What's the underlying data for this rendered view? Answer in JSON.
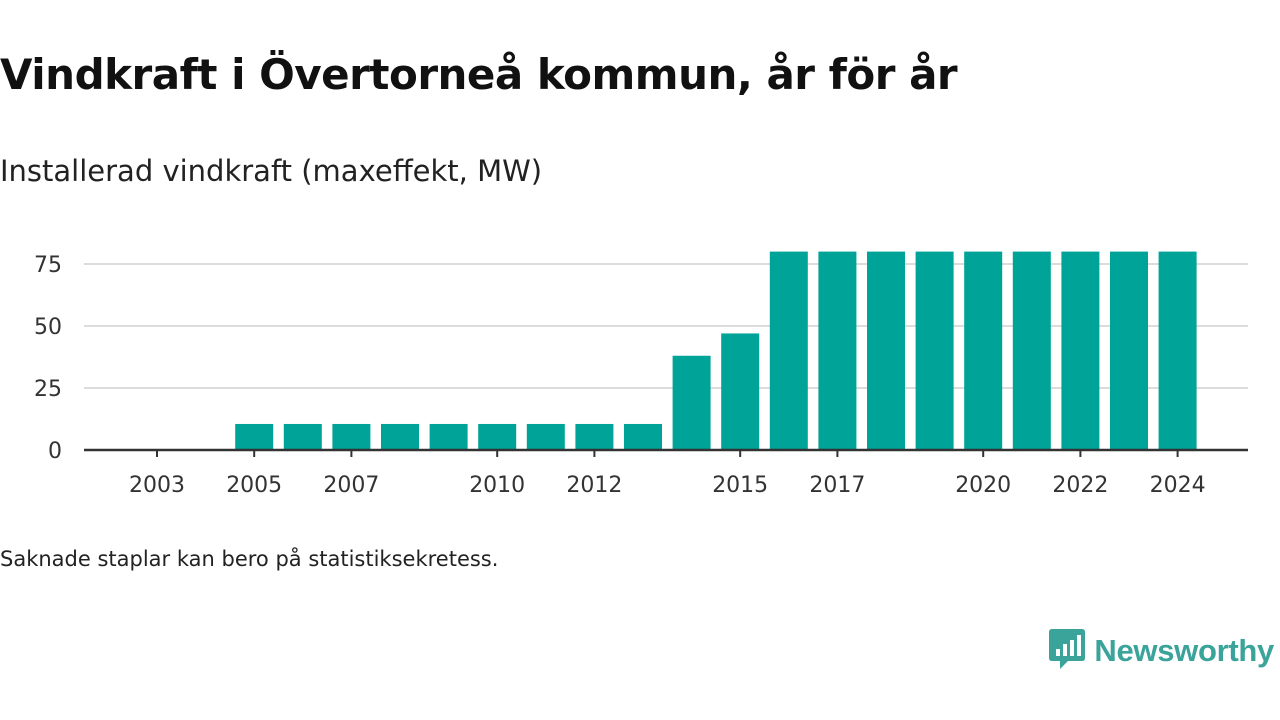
{
  "header": {
    "title": "Vindkraft i Övertorneå kommun, år för år",
    "subtitle": "Installerad vindkraft (maxeffekt, MW)"
  },
  "footer": {
    "note": "Saknade staplar kan bero på statistiksekretess.",
    "brand": "Newsworthy"
  },
  "colors": {
    "bar": "#00a398",
    "grid": "#dcdcdc",
    "axis": "#333333",
    "brand": "#3aa39a"
  },
  "icons": {
    "brand_logo": "newsworthy-logo-icon"
  },
  "chart_data": {
    "type": "bar",
    "categories": [
      "2003",
      "2004",
      "2005",
      "2006",
      "2007",
      "2008",
      "2009",
      "2010",
      "2011",
      "2012",
      "2013",
      "2014",
      "2015",
      "2016",
      "2017",
      "2018",
      "2019",
      "2020",
      "2021",
      "2022",
      "2023",
      "2024"
    ],
    "values": [
      0,
      0,
      10.5,
      10.5,
      10.5,
      10.5,
      10.5,
      10.5,
      10.5,
      10.5,
      10.5,
      38,
      47,
      80,
      80,
      80,
      80,
      80,
      80,
      80,
      80,
      80
    ],
    "xtick_labels": [
      "2003",
      "2005",
      "2007",
      "2010",
      "2012",
      "2015",
      "2017",
      "2020",
      "2022",
      "2024"
    ],
    "yticks": [
      0,
      25,
      50,
      75
    ],
    "ylim": [
      0,
      80
    ],
    "grid": true
  }
}
